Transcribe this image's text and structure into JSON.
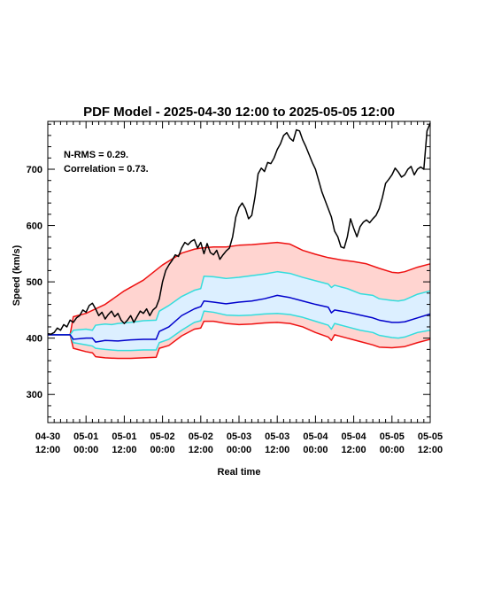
{
  "chart_data": {
    "type": "line",
    "title": "PDF Model - 2025-04-30 12:00 to 2025-05-05 12:00",
    "xlabel": "Real time",
    "ylabel": "Speed (km/s)",
    "xlim": [
      0,
      120
    ],
    "ylim": [
      250,
      785
    ],
    "yticks": [
      300,
      400,
      500,
      600,
      700
    ],
    "xticks": [
      {
        "x": 0,
        "line1": "04-30",
        "line2": "12:00"
      },
      {
        "x": 12,
        "line1": "05-01",
        "line2": "00:00"
      },
      {
        "x": 24,
        "line1": "05-01",
        "line2": "12:00"
      },
      {
        "x": 36,
        "line1": "05-02",
        "line2": "00:00"
      },
      {
        "x": 48,
        "line1": "05-02",
        "line2": "12:00"
      },
      {
        "x": 60,
        "line1": "05-03",
        "line2": "00:00"
      },
      {
        "x": 72,
        "line1": "05-03",
        "line2": "12:00"
      },
      {
        "x": 84,
        "line1": "05-04",
        "line2": "00:00"
      },
      {
        "x": 96,
        "line1": "05-04",
        "line2": "12:00"
      },
      {
        "x": 108,
        "line1": "05-05",
        "line2": "00:00"
      },
      {
        "x": 120,
        "line1": "05-05",
        "line2": "12:00"
      }
    ],
    "annotations": [
      "N-RMS = 0.29.",
      "Correlation = 0.73."
    ],
    "colors": {
      "observed": "#000000",
      "median": "#0000cc",
      "inner": "#33dddd",
      "outer": "#ee1111",
      "outer_fill": "#ffd4d0",
      "inner_fill": "#dcefff"
    },
    "series": [
      {
        "role": "observed",
        "points": [
          [
            0,
            408
          ],
          [
            1,
            407
          ],
          [
            2,
            410
          ],
          [
            3,
            418
          ],
          [
            4,
            414
          ],
          [
            5,
            424
          ],
          [
            6,
            420
          ],
          [
            7,
            432
          ],
          [
            8,
            428
          ],
          [
            9,
            436
          ],
          [
            10,
            440
          ],
          [
            11,
            450
          ],
          [
            12,
            446
          ],
          [
            13,
            458
          ],
          [
            14,
            462
          ],
          [
            15,
            452
          ],
          [
            16,
            440
          ],
          [
            17,
            446
          ],
          [
            18,
            434
          ],
          [
            19,
            442
          ],
          [
            20,
            448
          ],
          [
            21,
            438
          ],
          [
            22,
            444
          ],
          [
            23,
            432
          ],
          [
            24,
            426
          ],
          [
            25,
            432
          ],
          [
            26,
            440
          ],
          [
            27,
            428
          ],
          [
            28,
            438
          ],
          [
            29,
            448
          ],
          [
            30,
            444
          ],
          [
            31,
            452
          ],
          [
            32,
            440
          ],
          [
            33,
            450
          ],
          [
            34,
            455
          ],
          [
            35,
            470
          ],
          [
            36,
            500
          ],
          [
            37,
            520
          ],
          [
            38,
            530
          ],
          [
            39,
            538
          ],
          [
            40,
            548
          ],
          [
            41,
            545
          ],
          [
            42,
            560
          ],
          [
            43,
            570
          ],
          [
            44,
            566
          ],
          [
            45,
            572
          ],
          [
            46,
            575
          ],
          [
            47,
            560
          ],
          [
            48,
            570
          ],
          [
            49,
            550
          ],
          [
            50,
            568
          ],
          [
            51,
            552
          ],
          [
            52,
            548
          ],
          [
            53,
            556
          ],
          [
            54,
            540
          ],
          [
            55,
            548
          ],
          [
            56,
            555
          ],
          [
            57,
            560
          ],
          [
            58,
            580
          ],
          [
            59,
            615
          ],
          [
            60,
            632
          ],
          [
            61,
            640
          ],
          [
            62,
            630
          ],
          [
            63,
            612
          ],
          [
            64,
            618
          ],
          [
            65,
            650
          ],
          [
            66,
            692
          ],
          [
            67,
            702
          ],
          [
            68,
            696
          ],
          [
            69,
            712
          ],
          [
            70,
            710
          ],
          [
            71,
            720
          ],
          [
            72,
            735
          ],
          [
            73,
            745
          ],
          [
            74,
            760
          ],
          [
            75,
            765
          ],
          [
            76,
            755
          ],
          [
            77,
            750
          ],
          [
            78,
            770
          ],
          [
            79,
            768
          ],
          [
            80,
            752
          ],
          [
            81,
            740
          ],
          [
            82,
            726
          ],
          [
            83,
            712
          ],
          [
            84,
            700
          ],
          [
            85,
            680
          ],
          [
            86,
            660
          ],
          [
            87,
            645
          ],
          [
            88,
            630
          ],
          [
            89,
            615
          ],
          [
            90,
            590
          ],
          [
            91,
            580
          ],
          [
            92,
            562
          ],
          [
            93,
            560
          ],
          [
            94,
            580
          ],
          [
            95,
            612
          ],
          [
            96,
            595
          ],
          [
            97,
            580
          ],
          [
            98,
            598
          ],
          [
            99,
            606
          ],
          [
            100,
            610
          ],
          [
            101,
            605
          ],
          [
            102,
            612
          ],
          [
            103,
            618
          ],
          [
            104,
            630
          ],
          [
            105,
            650
          ],
          [
            106,
            675
          ],
          [
            107,
            682
          ],
          [
            108,
            690
          ],
          [
            109,
            702
          ],
          [
            110,
            695
          ],
          [
            111,
            686
          ],
          [
            112,
            690
          ],
          [
            113,
            700
          ],
          [
            114,
            705
          ],
          [
            115,
            690
          ],
          [
            116,
            700
          ],
          [
            117,
            704
          ],
          [
            118,
            700
          ],
          [
            119,
            768
          ],
          [
            120,
            782
          ]
        ]
      },
      {
        "role": "outer_upper",
        "points": [
          [
            0,
            406
          ],
          [
            7,
            406
          ],
          [
            8,
            438
          ],
          [
            12,
            444
          ],
          [
            18,
            460
          ],
          [
            24,
            484
          ],
          [
            30,
            503
          ],
          [
            36,
            530
          ],
          [
            42,
            551
          ],
          [
            46,
            558
          ],
          [
            48,
            560
          ],
          [
            52,
            562
          ],
          [
            56,
            562
          ],
          [
            60,
            565
          ],
          [
            64,
            566
          ],
          [
            68,
            568
          ],
          [
            72,
            570
          ],
          [
            76,
            567
          ],
          [
            80,
            556
          ],
          [
            84,
            549
          ],
          [
            88,
            543
          ],
          [
            92,
            539
          ],
          [
            96,
            536
          ],
          [
            100,
            532
          ],
          [
            104,
            524
          ],
          [
            108,
            517
          ],
          [
            110,
            516
          ],
          [
            112,
            518
          ],
          [
            116,
            526
          ],
          [
            120,
            532
          ]
        ]
      },
      {
        "role": "inner_upper",
        "points": [
          [
            0,
            406
          ],
          [
            7,
            406
          ],
          [
            8,
            414
          ],
          [
            12,
            416
          ],
          [
            14,
            414
          ],
          [
            15,
            423
          ],
          [
            18,
            425
          ],
          [
            20,
            424
          ],
          [
            22,
            426
          ],
          [
            26,
            428
          ],
          [
            30,
            431
          ],
          [
            34,
            432
          ],
          [
            35,
            448
          ],
          [
            38,
            458
          ],
          [
            42,
            474
          ],
          [
            46,
            485
          ],
          [
            48,
            488
          ],
          [
            49,
            510
          ],
          [
            52,
            509
          ],
          [
            56,
            506
          ],
          [
            60,
            508
          ],
          [
            64,
            511
          ],
          [
            68,
            514
          ],
          [
            72,
            518
          ],
          [
            76,
            515
          ],
          [
            80,
            508
          ],
          [
            84,
            502
          ],
          [
            88,
            496
          ],
          [
            89,
            490
          ],
          [
            90,
            494
          ],
          [
            94,
            488
          ],
          [
            98,
            479
          ],
          [
            102,
            476
          ],
          [
            104,
            470
          ],
          [
            108,
            467
          ],
          [
            110,
            466
          ],
          [
            112,
            468
          ],
          [
            116,
            478
          ],
          [
            120,
            484
          ]
        ]
      },
      {
        "role": "median",
        "points": [
          [
            0,
            406
          ],
          [
            7,
            406
          ],
          [
            8,
            398
          ],
          [
            12,
            400
          ],
          [
            14,
            400
          ],
          [
            15,
            393
          ],
          [
            18,
            396
          ],
          [
            22,
            395
          ],
          [
            26,
            397
          ],
          [
            30,
            398
          ],
          [
            34,
            398
          ],
          [
            35,
            412
          ],
          [
            38,
            420
          ],
          [
            42,
            440
          ],
          [
            46,
            452
          ],
          [
            48,
            456
          ],
          [
            49,
            466
          ],
          [
            52,
            464
          ],
          [
            56,
            461
          ],
          [
            60,
            464
          ],
          [
            64,
            466
          ],
          [
            68,
            470
          ],
          [
            72,
            476
          ],
          [
            76,
            472
          ],
          [
            80,
            466
          ],
          [
            84,
            460
          ],
          [
            88,
            455
          ],
          [
            89,
            445
          ],
          [
            90,
            450
          ],
          [
            94,
            446
          ],
          [
            98,
            441
          ],
          [
            102,
            436
          ],
          [
            104,
            432
          ],
          [
            108,
            428
          ],
          [
            110,
            428
          ],
          [
            112,
            429
          ],
          [
            116,
            436
          ],
          [
            120,
            443
          ]
        ]
      },
      {
        "role": "inner_lower",
        "points": [
          [
            0,
            406
          ],
          [
            7,
            406
          ],
          [
            8,
            392
          ],
          [
            12,
            388
          ],
          [
            14,
            386
          ],
          [
            15,
            382
          ],
          [
            18,
            380
          ],
          [
            22,
            378
          ],
          [
            26,
            378
          ],
          [
            30,
            379
          ],
          [
            34,
            379
          ],
          [
            35,
            392
          ],
          [
            38,
            398
          ],
          [
            42,
            414
          ],
          [
            46,
            428
          ],
          [
            48,
            431
          ],
          [
            49,
            448
          ],
          [
            52,
            446
          ],
          [
            56,
            441
          ],
          [
            60,
            440
          ],
          [
            64,
            441
          ],
          [
            68,
            443
          ],
          [
            72,
            444
          ],
          [
            76,
            442
          ],
          [
            80,
            437
          ],
          [
            84,
            430
          ],
          [
            88,
            423
          ],
          [
            89,
            416
          ],
          [
            90,
            426
          ],
          [
            94,
            420
          ],
          [
            98,
            414
          ],
          [
            102,
            410
          ],
          [
            104,
            405
          ],
          [
            108,
            401
          ],
          [
            110,
            400
          ],
          [
            112,
            402
          ],
          [
            116,
            410
          ],
          [
            120,
            414
          ]
        ]
      },
      {
        "role": "outer_lower",
        "points": [
          [
            0,
            406
          ],
          [
            7,
            406
          ],
          [
            8,
            382
          ],
          [
            12,
            376
          ],
          [
            14,
            374
          ],
          [
            15,
            367
          ],
          [
            18,
            365
          ],
          [
            22,
            364
          ],
          [
            26,
            364
          ],
          [
            30,
            365
          ],
          [
            34,
            366
          ],
          [
            35,
            382
          ],
          [
            38,
            387
          ],
          [
            42,
            404
          ],
          [
            46,
            416
          ],
          [
            48,
            418
          ],
          [
            49,
            430
          ],
          [
            52,
            430
          ],
          [
            56,
            426
          ],
          [
            60,
            424
          ],
          [
            64,
            425
          ],
          [
            68,
            427
          ],
          [
            72,
            428
          ],
          [
            76,
            426
          ],
          [
            80,
            420
          ],
          [
            84,
            410
          ],
          [
            88,
            402
          ],
          [
            89,
            396
          ],
          [
            90,
            406
          ],
          [
            94,
            400
          ],
          [
            98,
            394
          ],
          [
            102,
            388
          ],
          [
            104,
            384
          ],
          [
            108,
            383
          ],
          [
            110,
            384
          ],
          [
            112,
            385
          ],
          [
            116,
            392
          ],
          [
            120,
            398
          ]
        ]
      }
    ]
  }
}
